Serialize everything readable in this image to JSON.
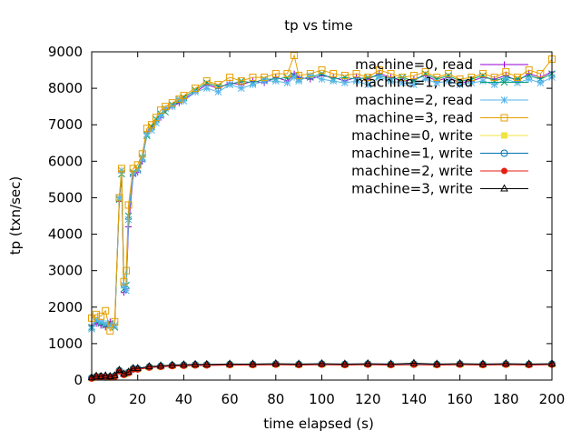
{
  "chart_data": {
    "type": "line",
    "title": "tp vs time",
    "xlabel": "time elapsed (s)",
    "ylabel": "tp (txn/sec)",
    "xlim": [
      0,
      200
    ],
    "ylim": [
      0,
      9000
    ],
    "xticks": [
      0,
      20,
      40,
      60,
      80,
      100,
      120,
      140,
      160,
      180,
      200
    ],
    "yticks": [
      0,
      1000,
      2000,
      3000,
      4000,
      5000,
      6000,
      7000,
      8000,
      9000
    ],
    "grid": false,
    "legend_position": "top-right",
    "series": [
      {
        "name": "machine=0, read",
        "color": "#9400d3",
        "marker": "plus",
        "x": [
          0,
          2,
          4,
          6,
          8,
          10,
          12,
          13,
          14,
          15,
          16,
          18,
          20,
          22,
          24,
          26,
          28,
          30,
          32,
          35,
          38,
          40,
          45,
          50,
          55,
          60,
          65,
          70,
          75,
          80,
          85,
          88,
          90,
          95,
          100,
          105,
          110,
          115,
          120,
          125,
          130,
          135,
          140,
          145,
          150,
          155,
          160,
          165,
          170,
          175,
          180,
          185,
          190,
          195,
          200
        ],
        "y": [
          1500,
          1550,
          1500,
          1450,
          1600,
          1500,
          4900,
          5700,
          2400,
          2500,
          4200,
          5600,
          5700,
          6000,
          6800,
          6900,
          7100,
          7200,
          7400,
          7500,
          7600,
          7700,
          7900,
          8100,
          8000,
          8150,
          8100,
          8200,
          8150,
          8300,
          8200,
          8400,
          8300,
          8250,
          8350,
          8300,
          8200,
          8300,
          8250,
          8400,
          8300,
          8200,
          8250,
          8350,
          8200,
          8300,
          8150,
          8200,
          8300,
          8250,
          8350,
          8200,
          8400,
          8300,
          8450
        ]
      },
      {
        "name": "machine=1, read",
        "color": "#009e73",
        "marker": "cross",
        "x": [
          0,
          2,
          4,
          6,
          8,
          10,
          12,
          13,
          14,
          15,
          16,
          18,
          20,
          22,
          24,
          26,
          28,
          30,
          32,
          35,
          38,
          40,
          45,
          50,
          55,
          60,
          65,
          70,
          75,
          80,
          85,
          88,
          90,
          95,
          100,
          105,
          110,
          115,
          120,
          125,
          130,
          135,
          140,
          145,
          150,
          155,
          160,
          165,
          170,
          175,
          180,
          185,
          190,
          195,
          200
        ],
        "y": [
          1450,
          1600,
          1550,
          1500,
          1550,
          1450,
          4950,
          5650,
          2500,
          2600,
          4500,
          5700,
          5800,
          6100,
          6700,
          6950,
          7150,
          7300,
          7350,
          7550,
          7650,
          7750,
          7950,
          8150,
          8050,
          8100,
          8200,
          8150,
          8250,
          8250,
          8300,
          8350,
          8250,
          8300,
          8400,
          8250,
          8300,
          8250,
          8300,
          8350,
          8250,
          8300,
          8200,
          8400,
          8250,
          8350,
          8200,
          8250,
          8350,
          8200,
          8300,
          8250,
          8350,
          8250,
          8400
        ]
      },
      {
        "name": "machine=2, read",
        "color": "#56b4e9",
        "marker": "star",
        "x": [
          0,
          2,
          4,
          6,
          8,
          10,
          12,
          13,
          14,
          15,
          16,
          18,
          20,
          22,
          24,
          26,
          28,
          30,
          32,
          35,
          38,
          40,
          45,
          50,
          55,
          60,
          65,
          70,
          75,
          80,
          85,
          88,
          90,
          95,
          100,
          105,
          110,
          115,
          120,
          125,
          130,
          135,
          140,
          145,
          150,
          155,
          160,
          165,
          170,
          175,
          180,
          185,
          190,
          195,
          200
        ],
        "y": [
          1400,
          1650,
          1600,
          1550,
          1500,
          1500,
          5000,
          5750,
          2600,
          2450,
          4400,
          5650,
          5750,
          6050,
          6750,
          6850,
          7050,
          7250,
          7450,
          7500,
          7700,
          7650,
          7900,
          8000,
          7900,
          8100,
          8000,
          8100,
          8200,
          8200,
          8150,
          8300,
          8200,
          8350,
          8250,
          8200,
          8150,
          8200,
          8100,
          8300,
          8200,
          8150,
          8100,
          8250,
          8150,
          8200,
          8100,
          8150,
          8200,
          8100,
          8250,
          8150,
          8250,
          8150,
          8300
        ]
      },
      {
        "name": "machine=3, read",
        "color": "#e69f00",
        "marker": "square-open",
        "x": [
          0,
          2,
          4,
          6,
          8,
          10,
          12,
          13,
          14,
          15,
          16,
          18,
          20,
          22,
          24,
          26,
          28,
          30,
          32,
          35,
          38,
          40,
          45,
          50,
          55,
          60,
          65,
          70,
          75,
          80,
          85,
          88,
          90,
          95,
          100,
          105,
          110,
          115,
          120,
          125,
          130,
          135,
          140,
          145,
          150,
          155,
          160,
          165,
          170,
          175,
          180,
          185,
          190,
          195,
          200
        ],
        "y": [
          1700,
          1800,
          1750,
          1900,
          1350,
          1600,
          5000,
          5800,
          2700,
          3000,
          4800,
          5800,
          5900,
          6200,
          6900,
          7000,
          7200,
          7400,
          7500,
          7600,
          7700,
          7800,
          8000,
          8200,
          8100,
          8300,
          8200,
          8300,
          8300,
          8400,
          8400,
          8900,
          8350,
          8400,
          8500,
          8400,
          8350,
          8400,
          8300,
          8500,
          8400,
          8300,
          8350,
          8450,
          8300,
          8400,
          8250,
          8300,
          8400,
          8300,
          8450,
          8300,
          8500,
          8400,
          8800
        ]
      },
      {
        "name": "machine=0, write",
        "color": "#f0e442",
        "marker": "square-filled",
        "x": [
          0,
          2,
          4,
          6,
          8,
          10,
          12,
          14,
          16,
          18,
          20,
          25,
          30,
          35,
          40,
          45,
          50,
          60,
          70,
          80,
          90,
          100,
          110,
          120,
          130,
          140,
          150,
          160,
          170,
          180,
          190,
          200
        ],
        "y": [
          50,
          100,
          80,
          90,
          70,
          100,
          250,
          150,
          200,
          300,
          300,
          350,
          370,
          390,
          400,
          410,
          410,
          420,
          420,
          430,
          420,
          430,
          420,
          430,
          420,
          430,
          420,
          430,
          420,
          430,
          420,
          430
        ]
      },
      {
        "name": "machine=1, write",
        "color": "#0072b2",
        "marker": "circle-open",
        "x": [
          0,
          2,
          4,
          6,
          8,
          10,
          12,
          14,
          16,
          18,
          20,
          25,
          30,
          35,
          40,
          45,
          50,
          60,
          70,
          80,
          90,
          100,
          110,
          120,
          130,
          140,
          150,
          160,
          170,
          180,
          190,
          200
        ],
        "y": [
          60,
          90,
          100,
          80,
          90,
          110,
          260,
          160,
          210,
          310,
          310,
          360,
          380,
          400,
          410,
          420,
          420,
          430,
          430,
          440,
          430,
          440,
          430,
          440,
          430,
          440,
          430,
          440,
          430,
          440,
          430,
          440
        ]
      },
      {
        "name": "machine=2, write",
        "color": "#e51e10",
        "marker": "circle-filled",
        "x": [
          0,
          2,
          4,
          6,
          8,
          10,
          12,
          14,
          16,
          18,
          20,
          25,
          30,
          35,
          40,
          45,
          50,
          60,
          70,
          80,
          90,
          100,
          110,
          120,
          130,
          140,
          150,
          160,
          170,
          180,
          190,
          200
        ],
        "y": [
          40,
          80,
          90,
          100,
          80,
          90,
          240,
          140,
          190,
          290,
          290,
          340,
          360,
          380,
          390,
          400,
          400,
          410,
          410,
          420,
          410,
          420,
          410,
          420,
          410,
          420,
          410,
          420,
          410,
          420,
          410,
          420
        ]
      },
      {
        "name": "machine=3, write",
        "color": "#000000",
        "marker": "triangle-open",
        "x": [
          0,
          2,
          4,
          6,
          8,
          10,
          12,
          14,
          16,
          18,
          20,
          25,
          30,
          35,
          40,
          45,
          50,
          60,
          70,
          80,
          90,
          100,
          110,
          120,
          130,
          140,
          150,
          160,
          170,
          180,
          190,
          200
        ],
        "y": [
          70,
          110,
          100,
          120,
          100,
          120,
          270,
          170,
          220,
          320,
          320,
          370,
          390,
          410,
          420,
          430,
          430,
          440,
          440,
          450,
          440,
          450,
          440,
          450,
          440,
          460,
          440,
          450,
          440,
          450,
          440,
          450
        ]
      }
    ]
  }
}
